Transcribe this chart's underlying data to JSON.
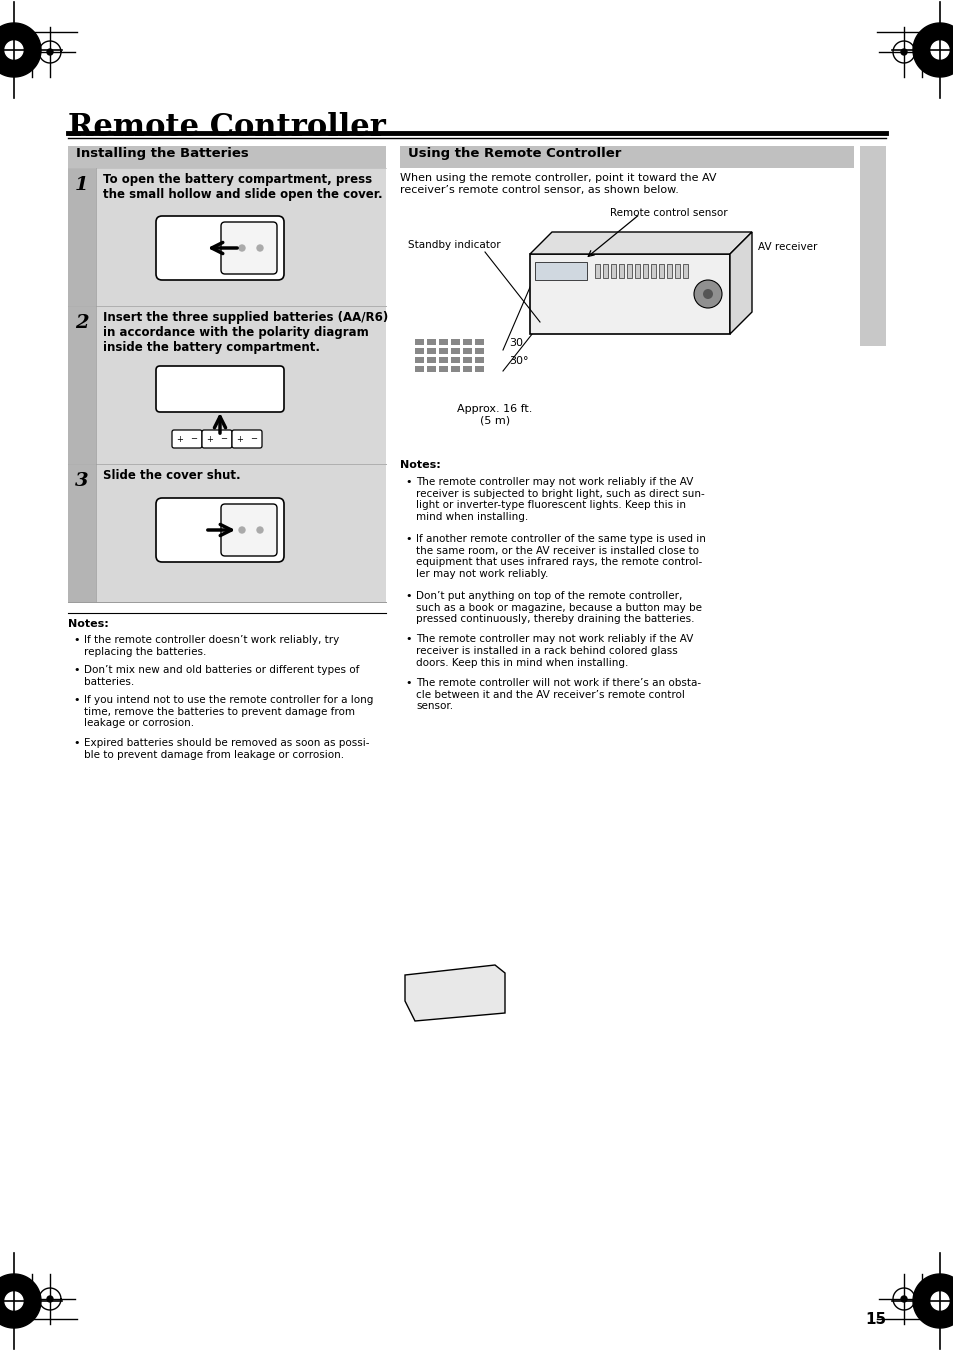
{
  "page_bg": "#ffffff",
  "title": "Remote Controller",
  "section1_title": "Installing the Batteries",
  "section2_title": "Using the Remote Controller",
  "section2_intro": "When using the remote controller, point it toward the AV\nreceiver’s remote control sensor, as shown below.",
  "step1_num": "1",
  "step1_text": "To open the battery compartment, press\nthe small hollow and slide open the cover.",
  "step2_num": "2",
  "step2_text": "Insert the three supplied batteries (AA/R6)\nin accordance with the polarity diagram\ninside the battery compartment.",
  "step3_num": "3",
  "step3_text": "Slide the cover shut.",
  "notes1_title": "Notes:",
  "notes1_bullets": [
    "If the remote controller doesn’t work reliably, try\nreplacing the batteries.",
    "Don’t mix new and old batteries or different types of\nbatteries.",
    "If you intend not to use the remote controller for a long\ntime, remove the batteries to prevent damage from\nleakage or corrosion.",
    "Expired batteries should be removed as soon as possi-\nble to prevent damage from leakage or corrosion."
  ],
  "notes2_title": "Notes:",
  "notes2_bullets": [
    "The remote controller may not work reliably if the AV\nreceiver is subjected to bright light, such as direct sun-\nlight or inverter-type fluorescent lights. Keep this in\nmind when installing.",
    "If another remote controller of the same type is used in\nthe same room, or the AV receiver is installed close to\nequipment that uses infrared rays, the remote control-\nler may not work reliably.",
    "Don’t put anything on top of the remote controller,\nsuch as a book or magazine, because a button may be\npressed continuously, thereby draining the batteries.",
    "The remote controller may not work reliably if the AV\nreceiver is installed in a rack behind colored glass\ndoors. Keep this in mind when installing.",
    "The remote controller will not work if there’s an obsta-\ncle between it and the AV receiver’s remote control\nsensor."
  ],
  "label_remote_sensor": "Remote control sensor",
  "label_standby": "Standby indicator",
  "label_av_receiver": "AV receiver",
  "label_approx": "Approx. 16 ft.\n(5 m)",
  "label_30_1": "30",
  "label_30_2": "30°",
  "page_number": "15",
  "section_header_bg": "#c0c0c0",
  "step_bg": "#d8d8d8",
  "right_margin_bg": "#c8c8c8"
}
